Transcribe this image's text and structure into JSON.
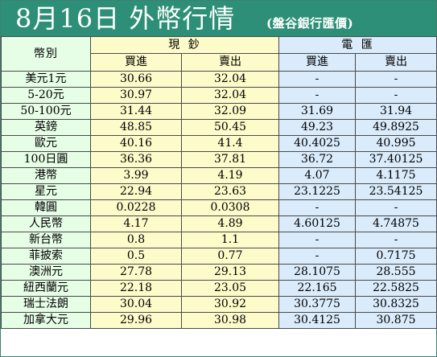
{
  "title": {
    "main": "8月16日 外幣行情",
    "sub": "(盤谷銀行匯價)"
  },
  "headers": {
    "currency": "幣別",
    "cash_group": "現 鈔",
    "tt_group": "電 匯",
    "buy": "買進",
    "sell": "賣出"
  },
  "colors": {
    "title_bg": "#2d8f77",
    "name_col_bg": "#e6fde6",
    "cash_col_bg": "#fdfbc9",
    "tt_col_bg": "#daebfb"
  },
  "rows": [
    {
      "name": "美元1元",
      "cash_buy": "30.66",
      "cash_sell": "32.04",
      "tt_buy": "-",
      "tt_sell": "-"
    },
    {
      "name": "5-20元",
      "cash_buy": "30.97",
      "cash_sell": "32.04",
      "tt_buy": "-",
      "tt_sell": "-"
    },
    {
      "name": "50-100元",
      "cash_buy": "31.44",
      "cash_sell": "32.09",
      "tt_buy": "31.69",
      "tt_sell": "31.94"
    },
    {
      "name": "英鎊",
      "cash_buy": "48.85",
      "cash_sell": "50.45",
      "tt_buy": "49.23",
      "tt_sell": "49.8925"
    },
    {
      "name": "歐元",
      "cash_buy": "40.16",
      "cash_sell": "41.4",
      "tt_buy": "40.4025",
      "tt_sell": "40.995"
    },
    {
      "name": "100日圓",
      "cash_buy": "36.36",
      "cash_sell": "37.81",
      "tt_buy": "36.72",
      "tt_sell": "37.40125"
    },
    {
      "name": "港幣",
      "cash_buy": "3.99",
      "cash_sell": "4.19",
      "tt_buy": "4.07",
      "tt_sell": "4.1175"
    },
    {
      "name": "星元",
      "cash_buy": "22.94",
      "cash_sell": "23.63",
      "tt_buy": "23.1225",
      "tt_sell": "23.54125"
    },
    {
      "name": "韓圓",
      "cash_buy": "0.0228",
      "cash_sell": "0.0308",
      "tt_buy": "-",
      "tt_sell": "-"
    },
    {
      "name": "人民幣",
      "cash_buy": "4.17",
      "cash_sell": "4.89",
      "tt_buy": "4.60125",
      "tt_sell": "4.74875"
    },
    {
      "name": "新台幣",
      "cash_buy": "0.8",
      "cash_sell": "1.1",
      "tt_buy": "-",
      "tt_sell": "-"
    },
    {
      "name": "菲披索",
      "cash_buy": "0.5",
      "cash_sell": "0.77",
      "tt_buy": "-",
      "tt_sell": "0.7175"
    },
    {
      "name": "澳洲元",
      "cash_buy": "27.78",
      "cash_sell": "29.13",
      "tt_buy": "28.1075",
      "tt_sell": "28.555"
    },
    {
      "name": "紐西蘭元",
      "cash_buy": "22.18",
      "cash_sell": "23.05",
      "tt_buy": "22.165",
      "tt_sell": "22.5825"
    },
    {
      "name": "瑞士法朗",
      "cash_buy": "30.04",
      "cash_sell": "30.92",
      "tt_buy": "30.3775",
      "tt_sell": "30.8325"
    },
    {
      "name": "加拿大元",
      "cash_buy": "29.96",
      "cash_sell": "30.98",
      "tt_buy": "30.4125",
      "tt_sell": "30.875"
    }
  ]
}
